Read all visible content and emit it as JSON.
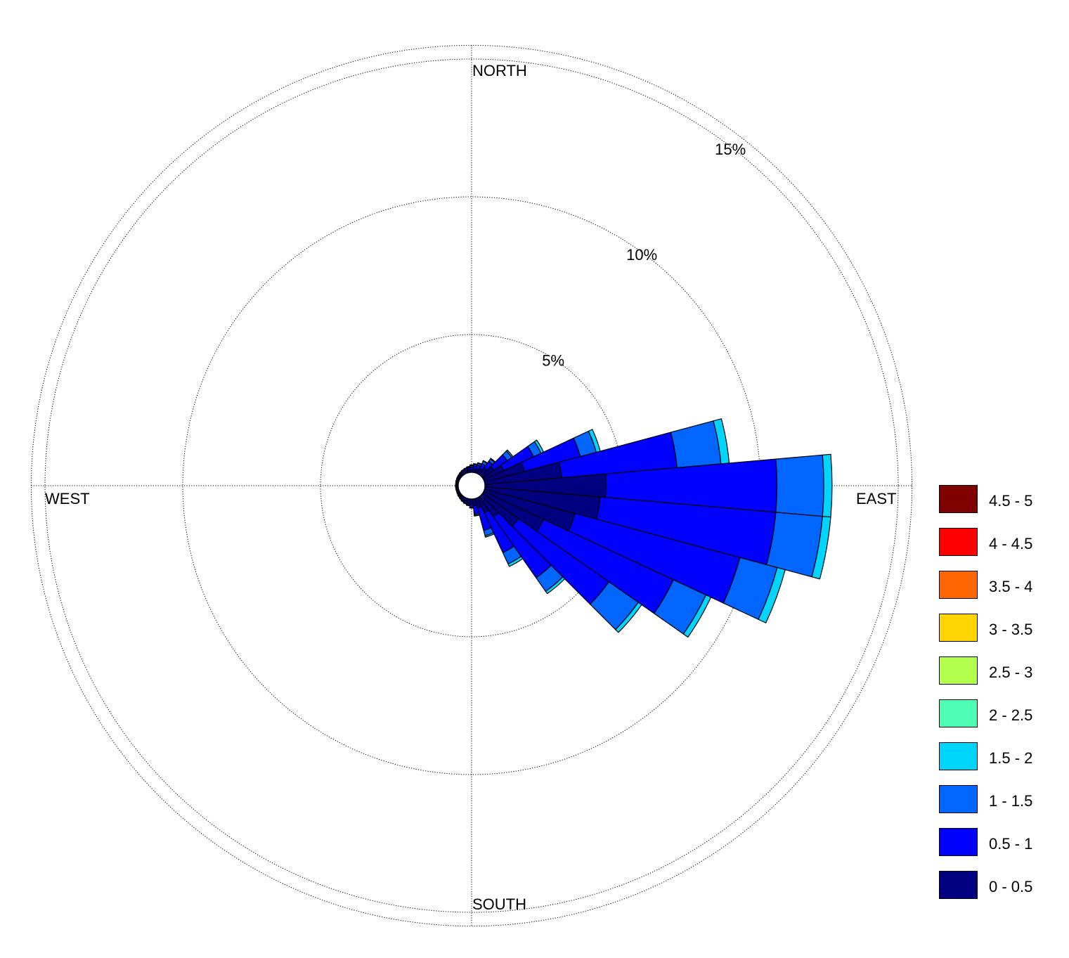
{
  "chart_data": {
    "type": "wind-rose",
    "directions": [
      "NORTH",
      "EAST",
      "SOUTH",
      "WEST"
    ],
    "radial_ticks": [
      "5%",
      "10%",
      "15%"
    ],
    "radial_values": [
      5,
      10,
      15
    ],
    "radial_max": 15.5,
    "grid": true,
    "legend_position": "right",
    "bins": [
      {
        "label": "0 - 0.5",
        "color": "#000080"
      },
      {
        "label": "0.5 - 1",
        "color": "#0000ff"
      },
      {
        "label": "1 - 1.5",
        "color": "#0066ff"
      },
      {
        "label": "1.5 - 2",
        "color": "#00d5ff"
      },
      {
        "label": "2 - 2.5",
        "color": "#4cffb2"
      },
      {
        "label": "2.5 - 3",
        "color": "#b2ff4c"
      },
      {
        "label": "3 - 3.5",
        "color": "#ffd500"
      },
      {
        "label": "3.5 - 4",
        "color": "#ff6600"
      },
      {
        "label": "4 - 4.5",
        "color": "#ff0000"
      },
      {
        "label": "4.5 - 5",
        "color": "#800000"
      }
    ],
    "sector_width_deg": 10,
    "sectors": [
      {
        "direction_deg": 0,
        "cumulative": [
          0.1,
          0.2,
          0.25,
          0.27
        ]
      },
      {
        "direction_deg": 10,
        "cumulative": [
          0.12,
          0.25,
          0.3,
          0.32
        ]
      },
      {
        "direction_deg": 20,
        "cumulative": [
          0.15,
          0.3,
          0.36,
          0.38
        ]
      },
      {
        "direction_deg": 30,
        "cumulative": [
          0.2,
          0.4,
          0.5,
          0.52
        ]
      },
      {
        "direction_deg": 40,
        "cumulative": [
          0.3,
          0.6,
          0.7,
          0.73
        ]
      },
      {
        "direction_deg": 50,
        "cumulative": [
          0.5,
          1.1,
          1.3,
          1.35
        ]
      },
      {
        "direction_deg": 60,
        "cumulative": [
          0.8,
          2.0,
          2.3,
          2.4
        ]
      },
      {
        "direction_deg": 70,
        "cumulative": [
          1.5,
          3.6,
          4.2,
          4.35
        ]
      },
      {
        "direction_deg": 80,
        "cumulative": [
          2.8,
          7.0,
          8.6,
          8.9
        ]
      },
      {
        "direction_deg": 90,
        "cumulative": [
          4.4,
          10.6,
          12.3,
          12.6
        ]
      },
      {
        "direction_deg": 100,
        "cumulative": [
          4.2,
          10.6,
          12.3,
          12.6
        ]
      },
      {
        "direction_deg": 110,
        "cumulative": [
          3.4,
          9.6,
          11.0,
          11.3
        ]
      },
      {
        "direction_deg": 120,
        "cumulative": [
          2.4,
          7.6,
          8.9,
          9.1
        ]
      },
      {
        "direction_deg": 130,
        "cumulative": [
          1.6,
          5.6,
          6.9,
          7.05
        ]
      },
      {
        "direction_deg": 140,
        "cumulative": [
          0.9,
          3.6,
          4.2,
          4.3
        ]
      },
      {
        "direction_deg": 150,
        "cumulative": [
          0.6,
          2.2,
          2.65,
          2.75
        ]
      },
      {
        "direction_deg": 160,
        "cumulative": [
          0.35,
          1.2,
          1.4,
          1.45
        ]
      },
      {
        "direction_deg": 170,
        "cumulative": [
          0.25,
          0.55,
          0.6,
          0.62
        ]
      },
      {
        "direction_deg": 180,
        "cumulative": [
          0.2,
          0.3,
          0.32,
          0.33
        ]
      },
      {
        "direction_deg": 190,
        "cumulative": [
          0.15,
          0.22,
          0.24,
          0.25
        ]
      },
      {
        "direction_deg": 200,
        "cumulative": [
          0.12,
          0.18,
          0.2,
          0.21
        ]
      },
      {
        "direction_deg": 210,
        "cumulative": [
          0.1,
          0.15,
          0.17,
          0.18
        ]
      },
      {
        "direction_deg": 220,
        "cumulative": [
          0.08,
          0.12,
          0.14,
          0.15
        ]
      },
      {
        "direction_deg": 230,
        "cumulative": [
          0.07,
          0.1,
          0.12,
          0.13
        ]
      },
      {
        "direction_deg": 240,
        "cumulative": [
          0.06,
          0.09,
          0.1,
          0.11
        ]
      },
      {
        "direction_deg": 250,
        "cumulative": [
          0.06,
          0.08,
          0.09,
          0.1
        ]
      },
      {
        "direction_deg": 260,
        "cumulative": [
          0.06,
          0.08,
          0.09,
          0.1
        ]
      },
      {
        "direction_deg": 270,
        "cumulative": [
          0.06,
          0.08,
          0.09,
          0.1
        ]
      },
      {
        "direction_deg": 280,
        "cumulative": [
          0.06,
          0.08,
          0.09,
          0.1
        ]
      },
      {
        "direction_deg": 290,
        "cumulative": [
          0.06,
          0.09,
          0.1,
          0.11
        ]
      },
      {
        "direction_deg": 300,
        "cumulative": [
          0.07,
          0.1,
          0.11,
          0.12
        ]
      },
      {
        "direction_deg": 310,
        "cumulative": [
          0.07,
          0.11,
          0.12,
          0.13
        ]
      },
      {
        "direction_deg": 320,
        "cumulative": [
          0.08,
          0.12,
          0.14,
          0.15
        ]
      },
      {
        "direction_deg": 330,
        "cumulative": [
          0.09,
          0.14,
          0.16,
          0.17
        ]
      },
      {
        "direction_deg": 340,
        "cumulative": [
          0.09,
          0.15,
          0.18,
          0.19
        ]
      },
      {
        "direction_deg": 350,
        "cumulative": [
          0.1,
          0.18,
          0.21,
          0.22
        ]
      }
    ]
  }
}
